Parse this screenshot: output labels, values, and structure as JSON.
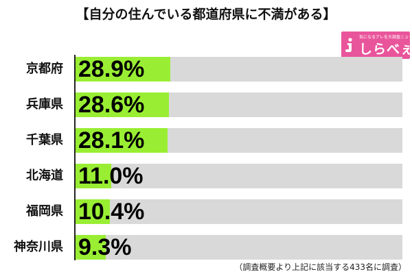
{
  "title": "【自分の住んでいる都道府県に不満がある】",
  "logo": {
    "name": "しらべぇ",
    "tagline": "気になるアレを大調査ニュース！",
    "color": "#e9559b"
  },
  "colors": {
    "bar_fill": "#99ee33",
    "bar_track": "#d9d9d9"
  },
  "footnote": "（調査概要より上記に該当する433名に調査）",
  "chart_data": {
    "type": "bar",
    "orientation": "horizontal",
    "title": "【自分の住んでいる都道府県に不満がある】",
    "categories": [
      "京都府",
      "兵庫県",
      "千葉県",
      "北海道",
      "福岡県",
      "神奈川県"
    ],
    "values": [
      28.9,
      28.6,
      28.1,
      11.0,
      10.4,
      9.3
    ],
    "value_labels": [
      "28.9%",
      "28.6%",
      "28.1%",
      "11.0%",
      "10.4%",
      "9.3%"
    ],
    "xlim": [
      0,
      100
    ],
    "grid": false,
    "legend": "none"
  }
}
